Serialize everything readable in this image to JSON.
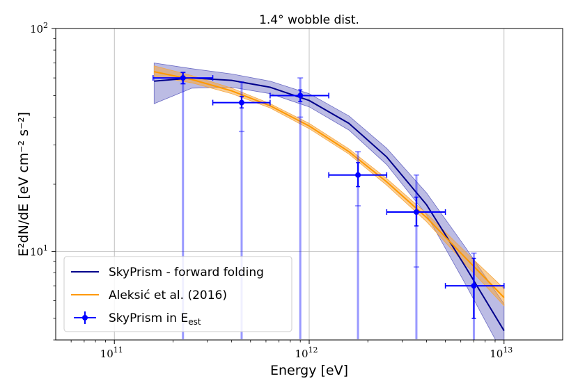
{
  "chart_data": {
    "type": "line",
    "title": "1.4° wobble dist.",
    "xlabel": "Energy [eV]",
    "ylabel": "E²dN/dE [eV cm⁻² s⁻²]",
    "xscale": "log",
    "yscale": "log",
    "xlim": [
      50000000000.0,
      20000000000000.0
    ],
    "ylim": [
      4,
      100
    ],
    "grid": true,
    "x_ticks": [
      {
        "value": 100000000000.0,
        "base": "10",
        "exp": "11"
      },
      {
        "value": 1000000000000.0,
        "base": "10",
        "exp": "12"
      },
      {
        "value": 10000000000000.0,
        "base": "10",
        "exp": "13"
      }
    ],
    "y_ticks": [
      {
        "value": 10,
        "base": "10",
        "exp": "1"
      },
      {
        "value": 100,
        "base": "10",
        "exp": "2"
      }
    ],
    "legend_position": "lower-left",
    "colors": {
      "forward": "#00008b",
      "forward_band": "#6b6bc4",
      "aleksic": "#ff9900",
      "aleksic_band": "#f5a742",
      "points": "#0000ff"
    },
    "series": [
      {
        "name": "SkyPrism - forward folding",
        "kind": "line",
        "color": "#00008b",
        "x": [
          160000000000.0,
          250000000000.0,
          400000000000.0,
          630000000000.0,
          1000000000000.0,
          1600000000000.0,
          2500000000000.0,
          4000000000000.0,
          6300000000000.0,
          10000000000000.0
        ],
        "y": [
          58,
          60,
          58.5,
          54.5,
          47.5,
          37.5,
          26.5,
          16.2,
          8.6,
          4.4
        ],
        "band_lower": [
          46,
          54,
          54.5,
          51,
          44.5,
          35,
          24.5,
          14.6,
          7.2,
          3.4
        ],
        "band_upper": [
          70,
          66,
          62.5,
          58,
          51,
          40.5,
          29,
          18.3,
          10.5,
          5.8
        ]
      },
      {
        "name": "Aleksić et al. (2016)",
        "kind": "line",
        "color": "#ff9900",
        "x": [
          160000000000.0,
          250000000000.0,
          400000000000.0,
          630000000000.0,
          1000000000000.0,
          1600000000000.0,
          2500000000000.0,
          4000000000000.0,
          6300000000000.0,
          10000000000000.0
        ],
        "y": [
          64,
          59,
          52.5,
          45,
          36.5,
          28,
          20.5,
          14.2,
          9.4,
          6.2
        ],
        "band_lower": [
          61,
          57,
          51,
          44,
          35.5,
          27.3,
          19.8,
          13.6,
          8.8,
          5.7
        ],
        "band_upper": [
          68,
          61.5,
          54,
          46,
          37.5,
          28.8,
          21.2,
          14.8,
          10,
          6.8
        ]
      }
    ],
    "points": {
      "name": "SkyPrism in E",
      "name_sub": "est",
      "color": "#0000ff",
      "data": [
        {
          "x": 225000000000.0,
          "y": 60,
          "xlo": 158000000000.0,
          "xhi": 320000000000.0,
          "ylo": 56.5,
          "yhi": 63.5,
          "ylo_sys": 56.5,
          "yhi_sys": 63.5
        },
        {
          "x": 450000000000.0,
          "y": 46.5,
          "xlo": 320000000000.0,
          "xhi": 630000000000.0,
          "ylo": 44,
          "yhi": 49.5,
          "ylo_sys": 34.5,
          "yhi_sys": 57.5
        },
        {
          "x": 900000000000.0,
          "y": 50,
          "xlo": 630000000000.0,
          "xhi": 1260000000000.0,
          "ylo": 47,
          "yhi": 53,
          "ylo_sys": 40,
          "yhi_sys": 60
        },
        {
          "x": 1780000000000.0,
          "y": 22,
          "xlo": 1260000000000.0,
          "xhi": 2500000000000.0,
          "ylo": 19.5,
          "yhi": 25,
          "ylo_sys": 16,
          "yhi_sys": 28
        },
        {
          "x": 3550000000000.0,
          "y": 15,
          "xlo": 2500000000000.0,
          "xhi": 5000000000000.0,
          "ylo": 13,
          "yhi": 17.5,
          "ylo_sys": 8.5,
          "yhi_sys": 22
        },
        {
          "x": 7000000000000.0,
          "y": 7,
          "xlo": 5000000000000.0,
          "xhi": 10000000000000.0,
          "ylo": 5,
          "yhi": 9.3,
          "ylo_sys": 4,
          "yhi_sys": 9.8
        }
      ]
    }
  }
}
